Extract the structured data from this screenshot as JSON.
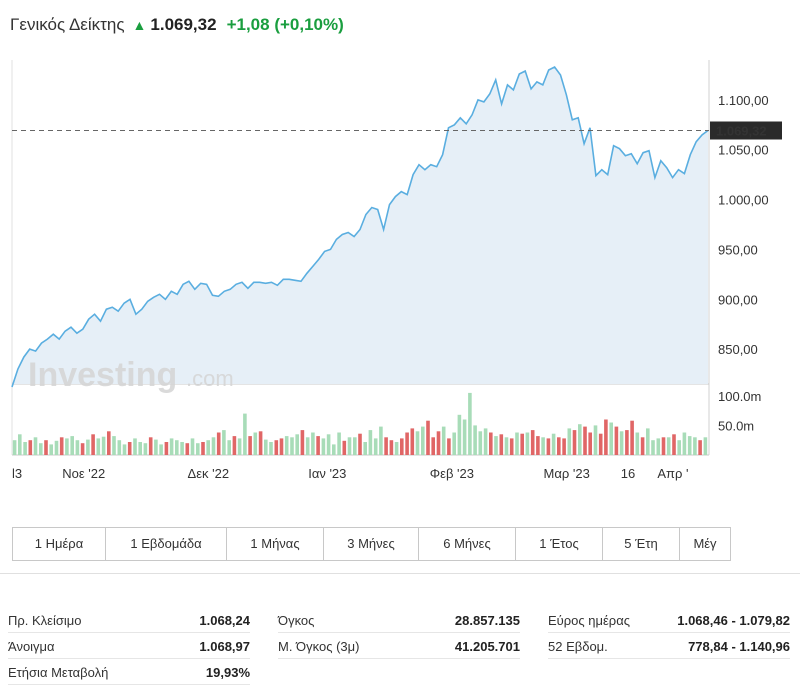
{
  "header": {
    "name": "Γενικός Δείκτης",
    "price": "1.069,32",
    "change": "+1,08",
    "change_pct": "(+0,10%)"
  },
  "current_price_tag": "1.069,32",
  "watermark": {
    "brand": "Investing",
    "suffix": ".com"
  },
  "colors": {
    "line": "#5aaee0",
    "area": "#e6eff7",
    "up": "#a8dcb8",
    "down": "#e06666",
    "positive_text": "#1a9e3f"
  },
  "chart_data": {
    "type": "line",
    "price_series": {
      "y": [
        812,
        830,
        842,
        850,
        848,
        856,
        860,
        865,
        860,
        868,
        872,
        866,
        870,
        880,
        885,
        878,
        890,
        892,
        888,
        896,
        900,
        885,
        890,
        898,
        902,
        905,
        900,
        908,
        905,
        915,
        918,
        910,
        916,
        915,
        904,
        903,
        908,
        910,
        915,
        917,
        911,
        917,
        917,
        916,
        917,
        914,
        920,
        920,
        919,
        918,
        926,
        933,
        940,
        948,
        950,
        960,
        965,
        967,
        963,
        970,
        985,
        992,
        990,
        970,
        995,
        1003,
        1008,
        1005,
        1025,
        1035,
        1030,
        1035,
        1033,
        1045,
        1072,
        1075,
        1082,
        1076,
        1085,
        1100,
        1098,
        1106,
        1120,
        1096,
        1115,
        1110,
        1126,
        1129,
        1111,
        1118,
        1115,
        1130,
        1133,
        1125,
        1105,
        1080,
        1082,
        1056,
        1072,
        1024,
        1030,
        1025,
        1054,
        1051,
        1044,
        1046,
        1036,
        1047,
        1049,
        1022,
        1039,
        1032,
        1022,
        1030,
        1026,
        1045,
        1058,
        1065,
        1069.32
      ],
      "ylim": [
        815,
        1140
      ],
      "yticks": [
        "850,00",
        "900,00",
        "950,00",
        "1.000,00",
        "1.050,00",
        "1.100,00"
      ],
      "ytick_values": [
        850,
        900,
        950,
        1000,
        1050,
        1100
      ]
    },
    "volume_series": {
      "values": [
        25,
        35,
        22,
        25,
        30,
        20,
        25,
        18,
        24,
        30,
        28,
        32,
        25,
        20,
        26,
        35,
        28,
        31,
        40,
        32,
        25,
        18,
        22,
        28,
        22,
        20,
        30,
        26,
        18,
        22,
        28,
        25,
        22,
        20,
        28,
        20,
        22,
        25,
        30,
        38,
        42,
        25,
        32,
        28,
        70,
        32,
        38,
        40,
        26,
        22,
        25,
        28,
        32,
        30,
        35,
        42,
        30,
        38,
        32,
        28,
        35,
        18,
        38,
        24,
        30,
        30,
        36,
        22,
        42,
        28,
        48,
        30,
        25,
        22,
        28,
        38,
        45,
        40,
        48,
        58,
        30,
        40,
        48,
        28,
        38,
        68,
        60,
        105,
        50,
        40,
        45,
        38,
        32,
        35,
        30,
        28,
        38,
        36,
        38,
        42,
        32,
        30,
        28,
        36,
        30,
        28,
        45,
        42,
        52,
        48,
        38,
        50,
        36,
        60,
        55,
        48,
        40,
        42,
        58,
        38,
        30,
        45,
        25,
        28,
        30,
        30,
        35,
        25,
        38,
        32,
        30,
        25,
        30
      ],
      "up": [
        1,
        1,
        1,
        0,
        1,
        1,
        0,
        1,
        1,
        0,
        1,
        1,
        1,
        0,
        1,
        0,
        1,
        1,
        0,
        1,
        1,
        1,
        0,
        1,
        1,
        1,
        0,
        1,
        1,
        0,
        1,
        1,
        1,
        0,
        1,
        1,
        0,
        1,
        1,
        0,
        1,
        1,
        0,
        1,
        1,
        0,
        1,
        0,
        1,
        1,
        0,
        0,
        1,
        1,
        1,
        0,
        1,
        1,
        0,
        1,
        1,
        1,
        1,
        0,
        1,
        1,
        0,
        1,
        1,
        1,
        1,
        0,
        0,
        1,
        0,
        0,
        0,
        1,
        1,
        0,
        0,
        0,
        1,
        0,
        1,
        1,
        1,
        1,
        1,
        1,
        1,
        0,
        1,
        0,
        1,
        0,
        1,
        0,
        1,
        0,
        0,
        1,
        0,
        1,
        0,
        0,
        1,
        0,
        1,
        0,
        0,
        1,
        0,
        0,
        1,
        0,
        1,
        0,
        0,
        1,
        0,
        1,
        1,
        1,
        0,
        1,
        0,
        1,
        1,
        1,
        1,
        0,
        1
      ],
      "ylim": [
        0,
        120
      ],
      "yticks": [
        "50.0m",
        "100.0m"
      ],
      "ytick_values": [
        50,
        100
      ]
    },
    "x_labels": [
      {
        "label": "l3",
        "pos": 0.0
      },
      {
        "label": "Νοε '22",
        "pos": 0.103
      },
      {
        "label": "Δεκ '22",
        "pos": 0.282
      },
      {
        "label": "Ιαν '23",
        "pos": 0.453
      },
      {
        "label": "Φεβ '23",
        "pos": 0.632
      },
      {
        "label": "Μαρ '23",
        "pos": 0.797
      },
      {
        "label": "16",
        "pos": 0.885
      },
      {
        "label": "Απρ '",
        "pos": 0.972
      }
    ]
  },
  "ranges": [
    "1 Ημέρα",
    "1 Εβδομάδα",
    "1 Μήνας",
    "3 Μήνες",
    "6 Μήνες",
    "1 Έτος",
    "5 Έτη",
    "Μέγ"
  ],
  "stats": [
    {
      "label": "Πρ. Κλείσιμο",
      "value": "1.068,24"
    },
    {
      "label": "Όγκος",
      "value": "28.857.135"
    },
    {
      "label": "Εύρος ημέρας",
      "value": "1.068,46 - 1.079,82"
    },
    {
      "label": "Άνοιγμα",
      "value": "1.068,97"
    },
    {
      "label": "Μ. Όγκος (3μ)",
      "value": "41.205.701"
    },
    {
      "label": "52 Εβδομ.",
      "value": "778,84 - 1.140,96"
    },
    {
      "label": "Ετήσια Μεταβολή",
      "value": "19,93%"
    }
  ]
}
